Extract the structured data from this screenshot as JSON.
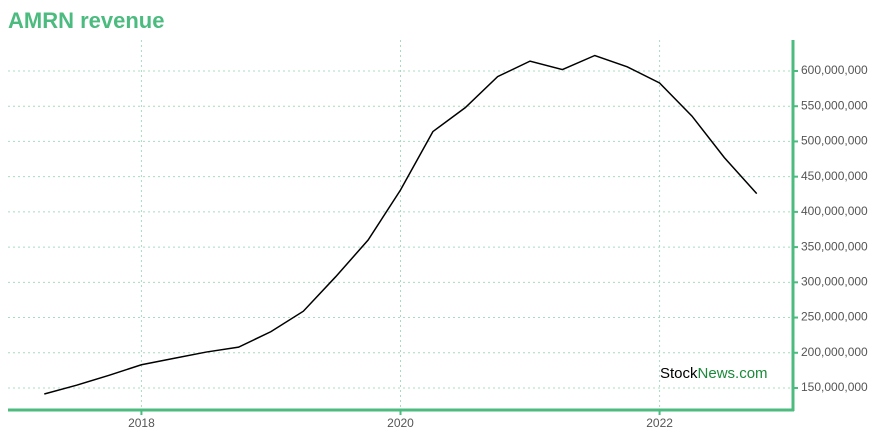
{
  "chart_data": {
    "type": "line",
    "title": "AMRN revenue",
    "x": [
      2017.25,
      2017.5,
      2017.75,
      2018,
      2018.25,
      2018.5,
      2018.75,
      2019,
      2019.25,
      2019.5,
      2019.75,
      2020,
      2020.25,
      2020.5,
      2020.75,
      2021,
      2021.25,
      2021.5,
      2021.75,
      2022,
      2022.25,
      2022.5,
      2022.75
    ],
    "series": [
      {
        "name": "AMRN revenue",
        "color": "#000000",
        "values": [
          141500000,
          154000000,
          168000000,
          183000000,
          192000000,
          201000000,
          208000000,
          230000000,
          259000000,
          308000000,
          360000000,
          431000000,
          514000000,
          548000000,
          592000000,
          614000000,
          602000000,
          622000000,
          606000000,
          583000000,
          536000000,
          477000000,
          426000000
        ]
      }
    ],
    "xlim": [
      2016.97,
      2023.03
    ],
    "xticks": [
      2018,
      2020,
      2022
    ],
    "ylim": [
      118750000,
      644000000
    ],
    "yticks": [
      {
        "value": 150000000,
        "label": "150,000,000"
      },
      {
        "value": 200000000,
        "label": "200,000,000"
      },
      {
        "value": 250000000,
        "label": "250,000,000"
      },
      {
        "value": 300000000,
        "label": "300,000,000"
      },
      {
        "value": 350000000,
        "label": "350,000,000"
      },
      {
        "value": 400000000,
        "label": "400,000,000"
      },
      {
        "value": 450000000,
        "label": "450,000,000"
      },
      {
        "value": 500000000,
        "label": "500,000,000"
      },
      {
        "value": 550000000,
        "label": "550,000,000"
      },
      {
        "value": 600000000,
        "label": "600,000,000"
      }
    ],
    "grid": true,
    "axis_color": "#4cbb7f",
    "watermark": {
      "first": "Stock",
      "second": "News.com"
    }
  }
}
